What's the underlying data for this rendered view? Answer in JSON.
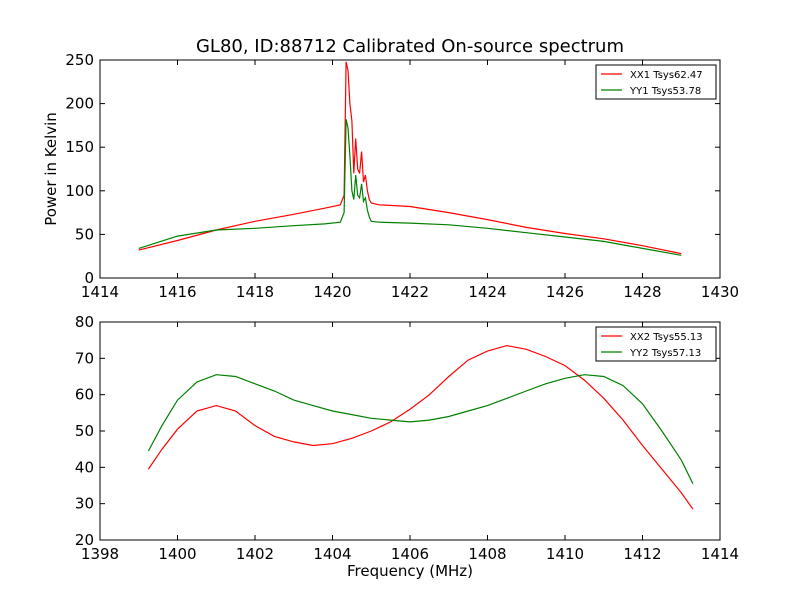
{
  "page_title": "GL80, ID:88712 Calibrated On-source spectrum",
  "chart_data": [
    {
      "type": "line",
      "title": "GL80, ID:88712 Calibrated On-source spectrum",
      "xlabel": "",
      "ylabel": "Power in Kelvin",
      "xlim": [
        1414,
        1430
      ],
      "ylim": [
        0,
        250
      ],
      "xticks": [
        1414,
        1416,
        1418,
        1420,
        1422,
        1424,
        1426,
        1428,
        1430
      ],
      "yticks": [
        0,
        50,
        100,
        150,
        200,
        250
      ],
      "grid": false,
      "legend_position": "top-right",
      "series": [
        {
          "name": "XX1 Tsys62.47",
          "color": "#ff0000",
          "x": [
            1415.0,
            1416.0,
            1417.0,
            1418.0,
            1419.0,
            1419.8,
            1420.2,
            1420.3,
            1420.35,
            1420.4,
            1420.45,
            1420.5,
            1420.55,
            1420.6,
            1420.65,
            1420.7,
            1420.75,
            1420.8,
            1420.85,
            1420.9,
            1420.95,
            1421.0,
            1421.2,
            1422.0,
            1423.0,
            1424.0,
            1425.0,
            1426.0,
            1427.0,
            1428.0,
            1429.0
          ],
          "y": [
            32,
            43,
            55,
            65,
            73,
            80,
            84,
            95,
            248,
            238,
            200,
            180,
            120,
            160,
            125,
            120,
            145,
            110,
            118,
            100,
            90,
            86,
            84,
            82,
            75,
            67,
            58,
            51,
            45,
            37,
            28
          ]
        },
        {
          "name": "YY1 Tsys53.78",
          "color": "#008000",
          "x": [
            1415.0,
            1416.0,
            1417.0,
            1418.0,
            1419.0,
            1419.8,
            1420.2,
            1420.3,
            1420.35,
            1420.4,
            1420.45,
            1420.5,
            1420.55,
            1420.6,
            1420.65,
            1420.7,
            1420.75,
            1420.8,
            1420.85,
            1420.9,
            1420.95,
            1421.0,
            1421.2,
            1422.0,
            1423.0,
            1424.0,
            1425.0,
            1426.0,
            1427.0,
            1428.0,
            1429.0
          ],
          "y": [
            34,
            48,
            55,
            57,
            60,
            62,
            64,
            75,
            182,
            172,
            140,
            100,
            90,
            118,
            95,
            92,
            108,
            88,
            92,
            78,
            70,
            65,
            64,
            63,
            61,
            57,
            52,
            47,
            42,
            34,
            26
          ]
        }
      ]
    },
    {
      "type": "line",
      "title": "",
      "xlabel": "Frequency (MHz)",
      "ylabel": "",
      "xlim": [
        1398,
        1414
      ],
      "ylim": [
        20,
        80
      ],
      "xticks": [
        1398,
        1400,
        1402,
        1404,
        1406,
        1408,
        1410,
        1412,
        1414
      ],
      "yticks": [
        20,
        30,
        40,
        50,
        60,
        70,
        80
      ],
      "grid": false,
      "legend_position": "top-right",
      "series": [
        {
          "name": "XX2 Tsys55.13",
          "color": "#ff0000",
          "x": [
            1399.25,
            1399.6,
            1400.0,
            1400.5,
            1401.0,
            1401.5,
            1402.0,
            1402.5,
            1403.0,
            1403.5,
            1404.0,
            1404.5,
            1405.0,
            1405.5,
            1406.0,
            1406.5,
            1407.0,
            1407.5,
            1408.0,
            1408.5,
            1409.0,
            1409.5,
            1410.0,
            1410.5,
            1411.0,
            1411.5,
            1412.0,
            1412.5,
            1413.0,
            1413.3
          ],
          "y": [
            39.5,
            45,
            50.5,
            55.5,
            57,
            55.5,
            51.5,
            48.5,
            47,
            46,
            46.5,
            48,
            50,
            52.5,
            56,
            60,
            65,
            69.5,
            72,
            73.5,
            72.5,
            70.5,
            68,
            64,
            59,
            53,
            46,
            39.5,
            33,
            28.5
          ]
        },
        {
          "name": "YY2 Tsys57.13",
          "color": "#008000",
          "x": [
            1399.25,
            1399.6,
            1400.0,
            1400.5,
            1401.0,
            1401.5,
            1402.0,
            1402.5,
            1403.0,
            1403.5,
            1404.0,
            1404.5,
            1405.0,
            1405.5,
            1406.0,
            1406.5,
            1407.0,
            1407.5,
            1408.0,
            1408.5,
            1409.0,
            1409.5,
            1410.0,
            1410.5,
            1411.0,
            1411.5,
            1412.0,
            1412.5,
            1413.0,
            1413.3
          ],
          "y": [
            44.5,
            51.5,
            58.5,
            63.5,
            65.5,
            65,
            63,
            61,
            58.5,
            57,
            55.5,
            54.5,
            53.5,
            53,
            52.5,
            53,
            54,
            55.5,
            57,
            59,
            61,
            63,
            64.5,
            65.5,
            65,
            62.5,
            57.5,
            50,
            42,
            35.5
          ]
        }
      ]
    }
  ]
}
